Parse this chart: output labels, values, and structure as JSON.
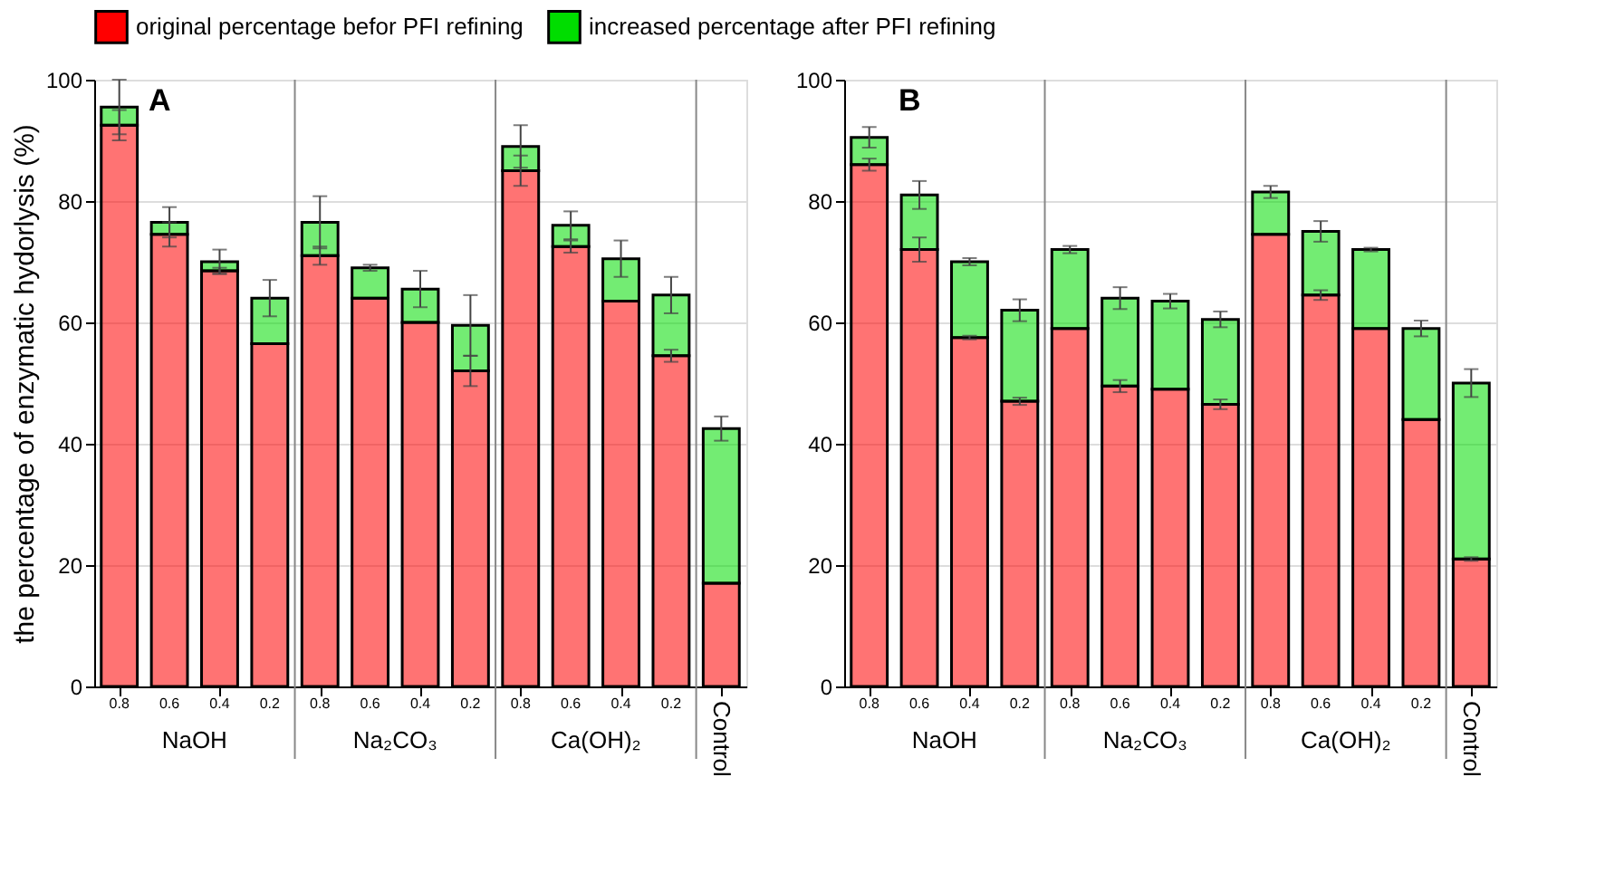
{
  "chart_data": [
    {
      "type": "bar",
      "title": "A",
      "ylabel": "the percentage of enzymatic hydorlysis (%)",
      "stacked": true,
      "categories": [
        "0.8",
        "0.6",
        "0.4",
        "0.2",
        "0.8",
        "0.6",
        "0.4",
        "0.2",
        "0.8",
        "0.6",
        "0.4",
        "0.2",
        "Control"
      ],
      "annotations": [
        "NaOH",
        "Na₂CO₃",
        "Ca(OH)₂"
      ],
      "series": [
        {
          "name": "original percentage befor PFI refining",
          "color": "#ff0000",
          "values": [
            92.5,
            74.5,
            68.5,
            56.5,
            71,
            64,
            60,
            52,
            85,
            72.5,
            63.5,
            54.5,
            17
          ],
          "errors": [
            2.5,
            2,
            0.5,
            null,
            1.5,
            null,
            null,
            2.5,
            2.5,
            1,
            null,
            1,
            null
          ]
        },
        {
          "name": "increased percentage after PFI refining",
          "color": "#00dd00",
          "values": [
            3,
            2,
            1.5,
            7.5,
            5.5,
            5,
            5.5,
            7.5,
            4,
            3.5,
            7,
            10,
            25.5
          ],
          "errors": [
            4.5,
            2.5,
            2,
            3,
            4.3,
            0.5,
            3,
            5,
            3.5,
            2.3,
            3,
            3,
            2
          ]
        }
      ],
      "ylim": [
        0,
        100
      ],
      "yticks": [
        0,
        20,
        40,
        60,
        80,
        100
      ],
      "grid": "y",
      "legend": "top"
    },
    {
      "type": "bar",
      "title": "B",
      "stacked": true,
      "categories": [
        "0.8",
        "0.6",
        "0.4",
        "0.2",
        "0.8",
        "0.6",
        "0.4",
        "0.2",
        "0.8",
        "0.6",
        "0.4",
        "0.2",
        "Control"
      ],
      "annotations": [
        "NaOH",
        "Na₂CO₃",
        "Ca(OH)₂"
      ],
      "series": [
        {
          "name": "original percentage befor PFI refining",
          "color": "#ff0000",
          "values": [
            86,
            72,
            57.5,
            47,
            59,
            49.5,
            49,
            46.5,
            74.5,
            64.5,
            59,
            44,
            21
          ],
          "errors": [
            1,
            2,
            0.3,
            0.6,
            null,
            1,
            null,
            0.8,
            null,
            0.8,
            null,
            null,
            0.3
          ]
        },
        {
          "name": "increased percentage after PFI refining",
          "color": "#00dd00",
          "values": [
            4.5,
            9,
            12.5,
            15,
            13,
            14.5,
            14.5,
            14,
            7,
            10.5,
            13,
            15,
            29
          ],
          "errors": [
            1.7,
            2.3,
            0.6,
            1.8,
            0.6,
            1.8,
            1.2,
            1.3,
            1,
            1.7,
            0.3,
            1.3,
            2.3
          ]
        }
      ],
      "ylim": [
        0,
        100
      ],
      "yticks": [
        0,
        20,
        40,
        60,
        80,
        100
      ],
      "grid": "y",
      "legend": "top"
    }
  ]
}
